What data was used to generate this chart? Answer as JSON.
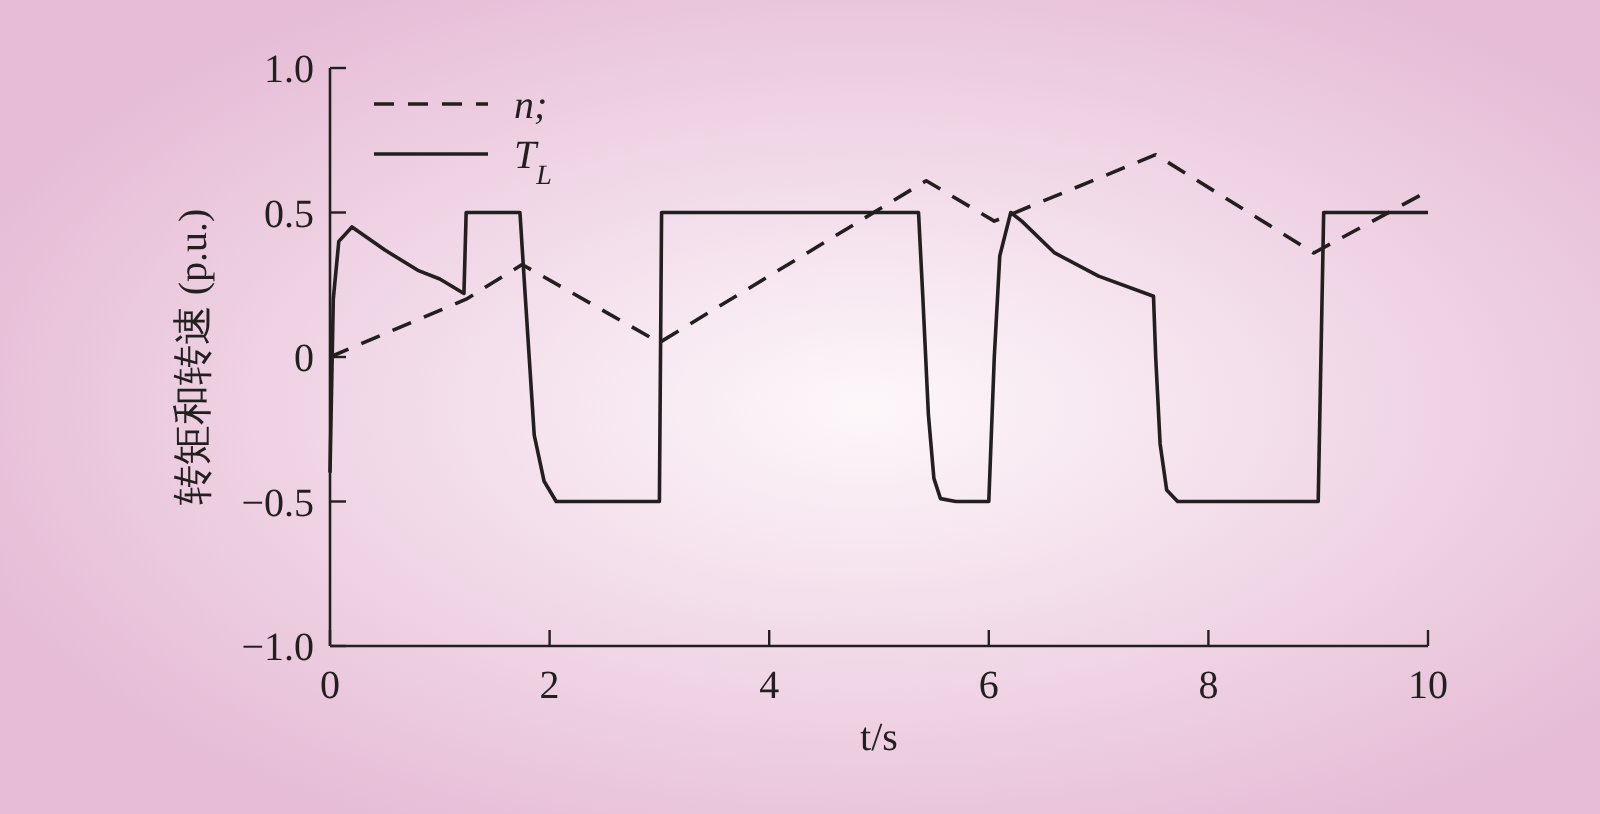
{
  "chart_data": {
    "type": "line",
    "xlabel": "t/s",
    "ylabel": "转矩和转速 (p.u.)",
    "xlim": [
      0,
      10
    ],
    "xticks": [
      0,
      2,
      4,
      6,
      8,
      10
    ],
    "ylim": [
      -1,
      1
    ],
    "yticks": [
      {
        "value": -1,
        "label": "−1.0"
      },
      {
        "value": -0.5,
        "label": "−0.5"
      },
      0,
      0.5,
      {
        "value": 1,
        "label": "1.0"
      }
    ],
    "grid": false,
    "legend": "top left",
    "marker": "none",
    "series": [
      {
        "name": "n;",
        "color": "#231f20",
        "line_style": "dashed",
        "x": [
          0,
          1.24,
          1.75,
          3.0,
          5.43,
          6.05,
          7.52,
          8.96,
          9.98
        ],
        "values": [
          0,
          0.2,
          0.32,
          0.05,
          0.61,
          0.47,
          0.7,
          0.36,
          0.57
        ]
      },
      {
        "name": "T$_{L}$",
        "color": "#231f20",
        "line_style": "solid",
        "x": [
          0,
          0.03,
          0.08,
          0.2,
          0.5,
          0.8,
          1.0,
          1.22,
          1.24,
          1.73,
          1.78,
          1.86,
          1.95,
          2.06,
          2.3,
          3.0,
          3.02,
          5.36,
          5.4,
          5.45,
          5.5,
          5.56,
          5.7,
          6.0,
          6.05,
          6.1,
          6.2,
          6.3,
          6.6,
          7.0,
          7.5,
          7.52,
          7.56,
          7.62,
          7.72,
          9.0,
          9.05,
          10.0
        ],
        "values": [
          -0.4,
          0.2,
          0.4,
          0.45,
          0.37,
          0.3,
          0.27,
          0.22,
          0.5,
          0.5,
          0.2,
          -0.27,
          -0.43,
          -0.5,
          -0.5,
          -0.5,
          0.5,
          0.5,
          0.2,
          -0.2,
          -0.42,
          -0.49,
          -0.5,
          -0.5,
          0.0,
          0.35,
          0.5,
          0.47,
          0.36,
          0.28,
          0.21,
          0.0,
          -0.3,
          -0.46,
          -0.5,
          -0.5,
          0.5,
          0.5
        ]
      }
    ]
  }
}
